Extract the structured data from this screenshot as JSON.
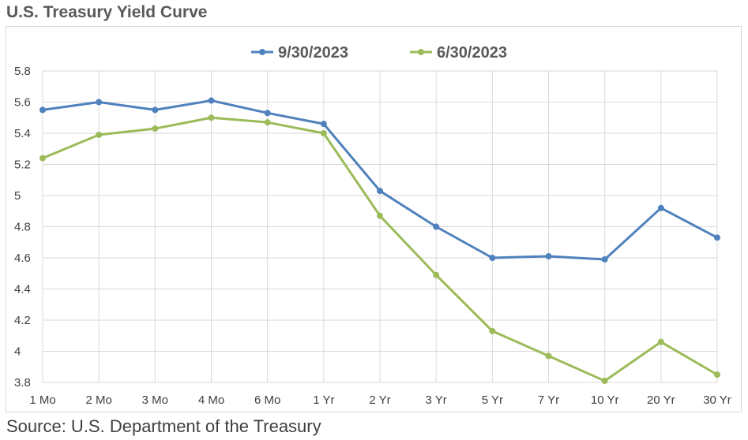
{
  "title": "U.S. Treasury Yield Curve",
  "source": "Source: U.S. Department of the Treasury",
  "colors": {
    "series_1": "#4f81bd",
    "series_2": "#9bbb59",
    "grid": "#d9d9d9"
  },
  "chart_data": {
    "type": "line",
    "title": "U.S. Treasury Yield Curve",
    "categories": [
      "1 Mo",
      "2 Mo",
      "3 Mo",
      "4 Mo",
      "6 Mo",
      "1 Yr",
      "2 Yr",
      "3 Yr",
      "5 Yr",
      "7 Yr",
      "10 Yr",
      "20 Yr",
      "30 Yr"
    ],
    "ylim": [
      3.8,
      5.8
    ],
    "yticks": [
      "3.8",
      "4",
      "4.2",
      "4.4",
      "4.6",
      "4.8",
      "5",
      "5.2",
      "5.4",
      "5.6",
      "5.8"
    ],
    "grid": true,
    "legend_position": "top",
    "series": [
      {
        "name": "9/30/2023",
        "color": "#4f81bd",
        "values": [
          5.55,
          5.6,
          5.55,
          5.61,
          5.53,
          5.46,
          5.03,
          4.8,
          4.6,
          4.61,
          4.59,
          4.92,
          4.73
        ]
      },
      {
        "name": "6/30/2023",
        "color": "#9bbb59",
        "values": [
          5.24,
          5.39,
          5.43,
          5.5,
          5.47,
          5.4,
          4.87,
          4.49,
          4.13,
          3.97,
          3.81,
          4.06,
          3.85
        ]
      }
    ]
  }
}
